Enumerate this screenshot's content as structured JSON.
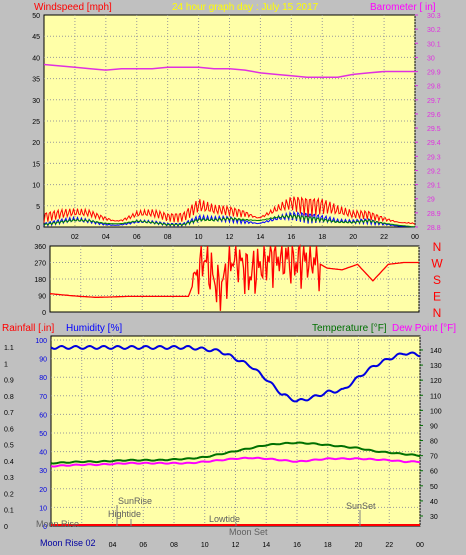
{
  "colors": {
    "background": "#c0c0c0",
    "plot_bg": "#ffffa8",
    "grid": "#9a9a9a",
    "axis_black": "#000000",
    "wind_red": "#ff0000",
    "wind_blue": "#0000ff",
    "wind_green": "#008000",
    "barometer": "#e030e0",
    "direction": "#ff0000",
    "rain": "#ff0000",
    "humidity": "#0000e0",
    "temperature": "#007000",
    "dewpoint": "#ff00ff",
    "yellow_title": "#ffff00",
    "astro_text": "#606060"
  },
  "header": {
    "title": "24 hour graph day : July 15 2017"
  },
  "chart_data": [
    {
      "id": "wind_baro",
      "type": "line",
      "left_axis_label": "Windspeed [mph]",
      "right_axis_label": "Barometer [ in]",
      "x_ticks": [
        "02",
        "04",
        "06",
        "08",
        "10",
        "12",
        "14",
        "16",
        "18",
        "20",
        "22",
        "00"
      ],
      "left_ylim": [
        0,
        50
      ],
      "left_ticks": [
        "0",
        "5",
        "10",
        "15",
        "20",
        "25",
        "30",
        "35",
        "40",
        "45",
        "50"
      ],
      "right_ylim": [
        28.8,
        30.3
      ],
      "right_ticks": [
        "28.8",
        "28.9",
        "29",
        "29.1",
        "29.2",
        "29.3",
        "29.4",
        "29.5",
        "29.6",
        "29.7",
        "29.8",
        "29.9",
        "30",
        "30.1",
        "30.2",
        "30.3"
      ],
      "grid": true,
      "series": [
        {
          "name": "Barometer",
          "axis": "right",
          "x": [
            0,
            1,
            2,
            3,
            4,
            5,
            6,
            7,
            8,
            9,
            10,
            11,
            12,
            13,
            14,
            15,
            16,
            17,
            18,
            19,
            20,
            21,
            22,
            23,
            24
          ],
          "values": [
            29.95,
            29.94,
            29.93,
            29.92,
            29.91,
            29.92,
            29.92,
            29.92,
            29.93,
            29.93,
            29.93,
            29.92,
            29.92,
            29.91,
            29.89,
            29.88,
            29.87,
            29.86,
            29.86,
            29.86,
            29.88,
            29.89,
            29.9,
            29.9,
            29.9
          ]
        },
        {
          "name": "Wind gust",
          "axis": "left",
          "x": [
            0,
            1,
            2,
            3,
            4,
            5,
            6,
            7,
            8,
            9,
            10,
            11,
            12,
            13,
            14,
            15,
            16,
            17,
            18,
            19,
            20,
            21,
            22,
            23,
            24
          ],
          "values": [
            2,
            2.5,
            3,
            3.5,
            3,
            2.5,
            3.5,
            3,
            2,
            2,
            4,
            3.5,
            4,
            4.5,
            4,
            5,
            5.5,
            4.5,
            4,
            3,
            2.5,
            3,
            2.5,
            2,
            1
          ]
        },
        {
          "name": "Wind speed",
          "axis": "left",
          "x": [
            0,
            1,
            2,
            3,
            4,
            5,
            6,
            7,
            8,
            9,
            10,
            11,
            12,
            13,
            14,
            15,
            16,
            17,
            18,
            19,
            20,
            21,
            22,
            23,
            24
          ],
          "values": [
            0.5,
            1,
            1.5,
            1.5,
            1,
            1,
            1.5,
            1,
            0.5,
            0.5,
            1.5,
            1.5,
            2,
            2,
            2,
            2.5,
            2.5,
            2,
            1.5,
            1,
            1,
            1.5,
            1,
            0.5,
            0
          ]
        }
      ]
    },
    {
      "id": "wind_direction",
      "type": "line",
      "left_ticks": [
        "0",
        "90",
        "180",
        "270",
        "360"
      ],
      "ylim": [
        0,
        360
      ],
      "compass": [
        "N",
        "W",
        "S",
        "E",
        "N"
      ],
      "grid": true,
      "series": [
        {
          "name": "Wind direction",
          "x": [
            0,
            1,
            2,
            3,
            4,
            5,
            6,
            7,
            8,
            9,
            10,
            11,
            12,
            13,
            14,
            15,
            16,
            17,
            18,
            19,
            20,
            21,
            22,
            23,
            24
          ],
          "values": [
            100,
            92,
            85,
            80,
            82,
            85,
            85,
            85,
            85,
            85,
            300,
            120,
            310,
            200,
            280,
            300,
            270,
            290,
            240,
            230,
            260,
            170,
            260,
            270,
            270
          ]
        }
      ]
    },
    {
      "id": "temp_hum_rain",
      "type": "line",
      "rain_axis_label": "Rainfall [.in]",
      "humidity_axis_label": "Humidity [%]",
      "temperature_axis_label": "Temperature [°F]",
      "dewpoint_axis_label": "Dew Point [°F]",
      "x_ticks": [
        "02",
        "04",
        "06",
        "08",
        "10",
        "12",
        "14",
        "16",
        "18",
        "20",
        "22",
        "00"
      ],
      "humidity_ticks": [
        "0",
        "10",
        "20",
        "30",
        "40",
        "50",
        "60",
        "70",
        "80",
        "90",
        "100"
      ],
      "rain_ticks": [
        "0",
        "0.1",
        "0.2",
        "0.3",
        "0.4",
        "0.5",
        "0.6",
        "0.7",
        "0.8",
        "0.9",
        "1",
        "1.1"
      ],
      "temp_ticks": [
        "30",
        "40",
        "50",
        "60",
        "70",
        "80",
        "90",
        "100",
        "110",
        "120",
        "130",
        "140"
      ],
      "humidity_ylim": [
        0,
        100
      ],
      "temp_ylim": [
        30,
        140
      ],
      "grid": true,
      "series": [
        {
          "name": "Humidity",
          "x": [
            0,
            1,
            2,
            3,
            4,
            5,
            6,
            7,
            8,
            9,
            10,
            11,
            12,
            13,
            14,
            15,
            16,
            17,
            18,
            19,
            20,
            21,
            22,
            23,
            24
          ],
          "values": [
            96,
            96,
            96,
            96,
            96,
            96,
            96,
            96,
            96,
            96,
            95,
            94,
            90,
            86,
            79,
            71,
            67,
            69,
            72,
            73,
            80,
            86,
            90,
            93,
            92
          ]
        },
        {
          "name": "Temperature",
          "x": [
            0,
            1,
            2,
            3,
            4,
            5,
            6,
            7,
            8,
            9,
            10,
            11,
            12,
            13,
            14,
            15,
            16,
            17,
            18,
            19,
            20,
            21,
            22,
            23,
            24
          ],
          "values": [
            65,
            65.5,
            66,
            66,
            66.5,
            67,
            67,
            67,
            67.5,
            68,
            69,
            71,
            73,
            75,
            77,
            78,
            78.5,
            78,
            77,
            76,
            75,
            73,
            72,
            71,
            70
          ]
        },
        {
          "name": "Dew Point",
          "x": [
            0,
            1,
            2,
            3,
            4,
            5,
            6,
            7,
            8,
            9,
            10,
            11,
            12,
            13,
            14,
            15,
            16,
            17,
            18,
            19,
            20,
            21,
            22,
            23,
            24
          ],
          "values": [
            63,
            63.5,
            64,
            64,
            64.5,
            65,
            65,
            65,
            65,
            65,
            66,
            67,
            68,
            68.5,
            68,
            67,
            66,
            67,
            68,
            68,
            68,
            67.5,
            67,
            66,
            66
          ]
        },
        {
          "name": "Rainfall",
          "x": [
            0,
            24
          ],
          "values": [
            0,
            0
          ]
        }
      ],
      "astro": {
        "moon_rise": "Moon Rise",
        "sunrise": "SunRise",
        "hightide": "Hightide",
        "lowtide": "Lowtide",
        "moon_set": "Moon Set",
        "sunset": "SunSet",
        "moon_rise_bottom": "Moon Rise 02"
      }
    }
  ]
}
